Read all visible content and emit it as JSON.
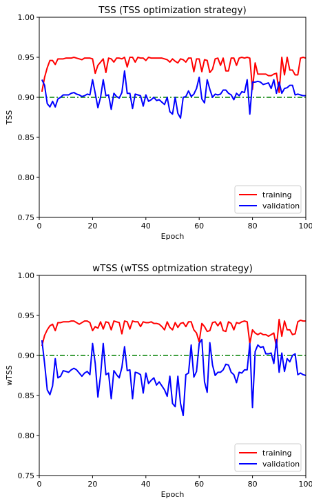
{
  "chart_data": [
    {
      "type": "line",
      "title": "TSS (TSS optimization strategy)",
      "xlabel": "Epoch",
      "ylabel": "TSS",
      "xlim": [
        0,
        100
      ],
      "ylim": [
        0.75,
        1.0
      ],
      "xticks": [
        "0",
        "20",
        "40",
        "60",
        "80",
        "100"
      ],
      "yticks": [
        "0.75",
        "0.80",
        "0.85",
        "0.90",
        "0.95",
        "1.00"
      ],
      "legend_position": "lower-right",
      "reference_line": {
        "y": 0.9,
        "color": "#008000",
        "style": "dash-dot"
      },
      "x": [
        1,
        2,
        3,
        4,
        5,
        6,
        7,
        8,
        9,
        10,
        11,
        12,
        13,
        14,
        15,
        16,
        17,
        18,
        19,
        20,
        21,
        22,
        23,
        24,
        25,
        26,
        27,
        28,
        29,
        30,
        31,
        32,
        33,
        34,
        35,
        36,
        37,
        38,
        39,
        40,
        41,
        42,
        43,
        44,
        45,
        46,
        47,
        48,
        49,
        50,
        51,
        52,
        53,
        54,
        55,
        56,
        57,
        58,
        59,
        60,
        61,
        62,
        63,
        64,
        65,
        66,
        67,
        68,
        69,
        70,
        71,
        72,
        73,
        74,
        75,
        76,
        77,
        78,
        79,
        80,
        81,
        82,
        83,
        84,
        85,
        86,
        87,
        88,
        89,
        90,
        91,
        92,
        93,
        94,
        95,
        96,
        97,
        98,
        99,
        100
      ],
      "series": [
        {
          "name": "training",
          "color": "#ff0000",
          "values": [
            0.907,
            0.925,
            0.937,
            0.946,
            0.946,
            0.941,
            0.948,
            0.948,
            0.948,
            0.949,
            0.949,
            0.949,
            0.95,
            0.949,
            0.948,
            0.947,
            0.949,
            0.949,
            0.949,
            0.948,
            0.93,
            0.94,
            0.944,
            0.948,
            0.931,
            0.949,
            0.948,
            0.944,
            0.949,
            0.949,
            0.948,
            0.95,
            0.938,
            0.95,
            0.95,
            0.944,
            0.95,
            0.949,
            0.949,
            0.946,
            0.95,
            0.949,
            0.949,
            0.949,
            0.949,
            0.949,
            0.948,
            0.947,
            0.944,
            0.948,
            0.945,
            0.943,
            0.948,
            0.947,
            0.944,
            0.949,
            0.949,
            0.932,
            0.948,
            0.948,
            0.932,
            0.947,
            0.946,
            0.931,
            0.935,
            0.948,
            0.949,
            0.94,
            0.949,
            0.933,
            0.933,
            0.949,
            0.949,
            0.94,
            0.949,
            0.95,
            0.949,
            0.95,
            0.949,
            0.91,
            0.943,
            0.929,
            0.929,
            0.929,
            0.929,
            0.927,
            0.927,
            0.929,
            0.93,
            0.906,
            0.95,
            0.928,
            0.95,
            0.934,
            0.934,
            0.928,
            0.928,
            0.949,
            0.95,
            0.949
          ]
        },
        {
          "name": "validation",
          "color": "#0000ff",
          "values": [
            0.922,
            0.915,
            0.892,
            0.888,
            0.895,
            0.888,
            0.898,
            0.9,
            0.903,
            0.903,
            0.903,
            0.905,
            0.906,
            0.904,
            0.903,
            0.901,
            0.902,
            0.904,
            0.903,
            0.922,
            0.905,
            0.887,
            0.9,
            0.922,
            0.902,
            0.903,
            0.885,
            0.905,
            0.901,
            0.899,
            0.906,
            0.933,
            0.905,
            0.905,
            0.886,
            0.904,
            0.903,
            0.902,
            0.889,
            0.903,
            0.895,
            0.897,
            0.9,
            0.896,
            0.897,
            0.894,
            0.891,
            0.9,
            0.882,
            0.879,
            0.9,
            0.88,
            0.874,
            0.9,
            0.901,
            0.908,
            0.901,
            0.904,
            0.911,
            0.925,
            0.898,
            0.893,
            0.922,
            0.91,
            0.9,
            0.904,
            0.903,
            0.904,
            0.909,
            0.909,
            0.905,
            0.903,
            0.897,
            0.905,
            0.902,
            0.907,
            0.906,
            0.922,
            0.879,
            0.919,
            0.919,
            0.92,
            0.919,
            0.916,
            0.917,
            0.918,
            0.911,
            0.922,
            0.905,
            0.919,
            0.905,
            0.911,
            0.912,
            0.915,
            0.915,
            0.903,
            0.904,
            0.903,
            0.902,
            0.902
          ]
        }
      ]
    },
    {
      "type": "line",
      "title": "wTSS (wTSS optmization strategy)",
      "xlabel": "Epoch",
      "ylabel": "wTSS",
      "xlim": [
        0,
        100
      ],
      "ylim": [
        0.75,
        1.0
      ],
      "xticks": [
        "0",
        "20",
        "40",
        "60",
        "80",
        "100"
      ],
      "yticks": [
        "0.75",
        "0.80",
        "0.85",
        "0.90",
        "0.95",
        "1.00"
      ],
      "legend_position": "lower-right",
      "reference_line": {
        "y": 0.9,
        "color": "#008000",
        "style": "dash-dot"
      },
      "x": [
        1,
        2,
        3,
        4,
        5,
        6,
        7,
        8,
        9,
        10,
        11,
        12,
        13,
        14,
        15,
        16,
        17,
        18,
        19,
        20,
        21,
        22,
        23,
        24,
        25,
        26,
        27,
        28,
        29,
        30,
        31,
        32,
        33,
        34,
        35,
        36,
        37,
        38,
        39,
        40,
        41,
        42,
        43,
        44,
        45,
        46,
        47,
        48,
        49,
        50,
        51,
        52,
        53,
        54,
        55,
        56,
        57,
        58,
        59,
        60,
        61,
        62,
        63,
        64,
        65,
        66,
        67,
        68,
        69,
        70,
        71,
        72,
        73,
        74,
        75,
        76,
        77,
        78,
        79,
        80,
        81,
        82,
        83,
        84,
        85,
        86,
        87,
        88,
        89,
        90,
        91,
        92,
        93,
        94,
        95,
        96,
        97,
        98,
        99,
        100
      ],
      "series": [
        {
          "name": "training",
          "color": "#ff0000",
          "values": [
            0.912,
            0.925,
            0.932,
            0.937,
            0.939,
            0.931,
            0.941,
            0.941,
            0.942,
            0.942,
            0.942,
            0.943,
            0.943,
            0.941,
            0.939,
            0.941,
            0.943,
            0.943,
            0.941,
            0.931,
            0.936,
            0.934,
            0.942,
            0.933,
            0.942,
            0.941,
            0.932,
            0.943,
            0.942,
            0.941,
            0.927,
            0.943,
            0.942,
            0.933,
            0.943,
            0.942,
            0.942,
            0.936,
            0.942,
            0.941,
            0.941,
            0.942,
            0.94,
            0.94,
            0.939,
            0.936,
            0.932,
            0.942,
            0.935,
            0.932,
            0.941,
            0.935,
            0.94,
            0.941,
            0.936,
            0.942,
            0.942,
            0.932,
            0.928,
            0.917,
            0.94,
            0.936,
            0.93,
            0.931,
            0.941,
            0.942,
            0.937,
            0.942,
            0.931,
            0.93,
            0.942,
            0.94,
            0.932,
            0.941,
            0.94,
            0.942,
            0.943,
            0.942,
            0.915,
            0.932,
            0.928,
            0.926,
            0.928,
            0.926,
            0.926,
            0.924,
            0.926,
            0.928,
            0.91,
            0.945,
            0.924,
            0.943,
            0.932,
            0.932,
            0.926,
            0.927,
            0.942,
            0.944,
            0.943,
            0.943
          ]
        },
        {
          "name": "validation",
          "color": "#0000ff",
          "values": [
            0.919,
            0.89,
            0.857,
            0.851,
            0.862,
            0.896,
            0.872,
            0.874,
            0.881,
            0.88,
            0.879,
            0.882,
            0.884,
            0.882,
            0.878,
            0.874,
            0.878,
            0.88,
            0.876,
            0.915,
            0.89,
            0.848,
            0.875,
            0.915,
            0.876,
            0.878,
            0.846,
            0.881,
            0.876,
            0.872,
            0.885,
            0.911,
            0.881,
            0.882,
            0.846,
            0.879,
            0.878,
            0.876,
            0.853,
            0.878,
            0.865,
            0.869,
            0.872,
            0.863,
            0.867,
            0.862,
            0.857,
            0.849,
            0.874,
            0.84,
            0.836,
            0.874,
            0.84,
            0.825,
            0.876,
            0.878,
            0.913,
            0.873,
            0.88,
            0.915,
            0.92,
            0.867,
            0.854,
            0.916,
            0.888,
            0.875,
            0.879,
            0.879,
            0.882,
            0.889,
            0.888,
            0.879,
            0.876,
            0.866,
            0.879,
            0.878,
            0.882,
            0.882,
            0.915,
            0.835,
            0.905,
            0.913,
            0.91,
            0.911,
            0.902,
            0.902,
            0.903,
            0.89,
            0.92,
            0.879,
            0.903,
            0.88,
            0.896,
            0.892,
            0.9,
            0.902,
            0.876,
            0.878,
            0.876,
            0.875
          ]
        }
      ]
    }
  ]
}
